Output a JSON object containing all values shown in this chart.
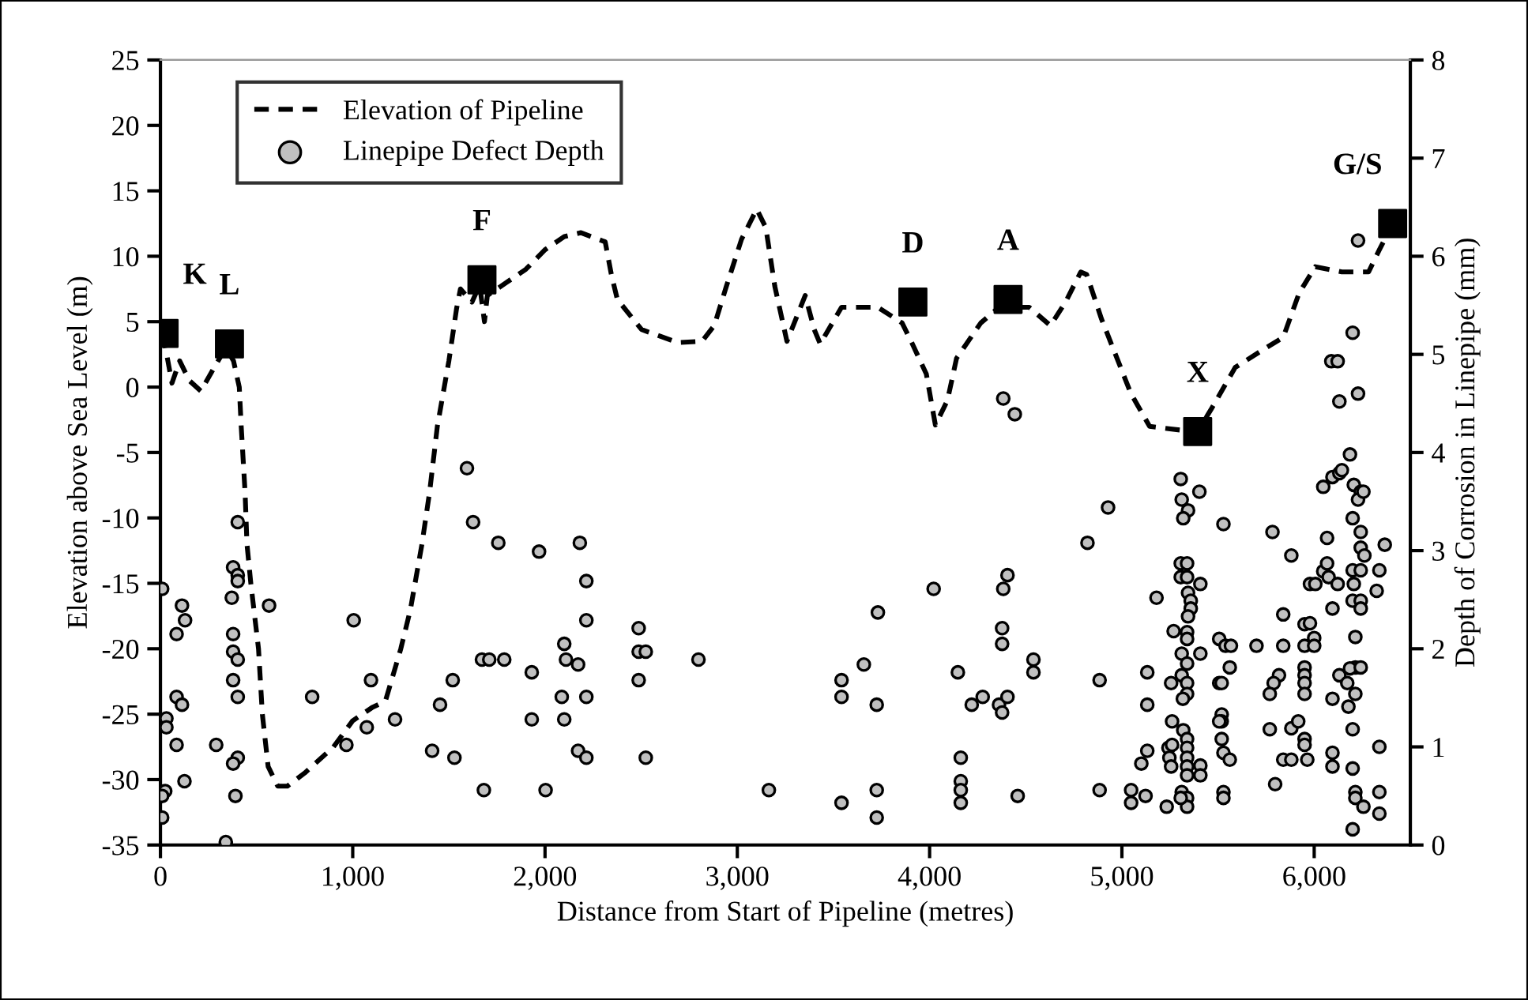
{
  "chart_data": {
    "type": "line",
    "xlabel": "Distance from Start of Pipeline (metres)",
    "ylabel": "Elevation above Sea Level (m)",
    "y2label": "Depth of Corrosion in Linepipe (mm)",
    "xlim": [
      0,
      6500
    ],
    "xticks": [
      0,
      {
        "value": 1000,
        "label": "1,000"
      },
      {
        "value": 2000,
        "label": "2,000"
      },
      {
        "value": 3000,
        "label": "3,000"
      },
      {
        "value": 4000,
        "label": "4,000"
      },
      {
        "value": 5000,
        "label": "5,000"
      },
      {
        "value": 6000,
        "label": "6,000"
      }
    ],
    "ylim": [
      -35,
      25
    ],
    "yticks": [
      -35,
      -30,
      -25,
      -20,
      -15,
      -10,
      -5,
      0,
      5,
      10,
      15,
      20,
      25
    ],
    "y2lim": [
      0,
      8
    ],
    "y2ticks": [
      0,
      1,
      2,
      3,
      4,
      5,
      6,
      7,
      8
    ],
    "grid": false,
    "legend": "top left",
    "series": [
      {
        "name": "Elevation of Pipeline",
        "axis": "y",
        "color": "#000000",
        "line_style": "dashed",
        "marker": "none",
        "x": [
          0,
          20,
          60,
          100,
          150,
          210,
          280,
          340,
          380,
          410,
          420,
          440,
          450,
          470,
          510,
          530,
          560,
          610,
          660,
          750,
          900,
          1000,
          1100,
          1170,
          1250,
          1300,
          1360,
          1400,
          1440,
          1500,
          1540,
          1560,
          1620,
          1660,
          1685,
          1700,
          1800,
          1900,
          2000,
          2100,
          2187,
          2313,
          2345,
          2376,
          2502,
          2691,
          2817,
          2880,
          2943,
          3022,
          3101,
          3148,
          3195,
          3258,
          3353,
          3400,
          3431,
          3542,
          3731,
          3857,
          3904,
          3983,
          4030,
          4093,
          4140,
          4266,
          4361,
          4518,
          4628,
          4707,
          4786,
          4817,
          4894,
          5047,
          5144,
          5311,
          5394,
          5464,
          5589,
          5728,
          5839,
          5922,
          6006,
          6144,
          6283,
          6339,
          6408
        ],
        "values": [
          4,
          3.5,
          0.3,
          2,
          0.5,
          -0.3,
          1.5,
          3,
          2,
          0,
          -3,
          -8,
          -12,
          -15,
          -20,
          -25,
          -29,
          -30.5,
          -30.5,
          -29.5,
          -27.5,
          -25.5,
          -24.5,
          -24,
          -20,
          -17,
          -12,
          -8,
          -3,
          2,
          6,
          7.5,
          6.5,
          7.8,
          5,
          7,
          8,
          9,
          10.5,
          11.5,
          11.8,
          11.1,
          8.6,
          6.7,
          4.4,
          3.4,
          3.5,
          4.7,
          7.7,
          11.3,
          13.6,
          12.2,
          7.7,
          3.5,
          7.0,
          4.4,
          3.3,
          6.1,
          6.1,
          4.9,
          3.5,
          1.0,
          -2.9,
          -1.0,
          2.2,
          4.9,
          6.1,
          6.1,
          4.7,
          6.5,
          8.8,
          8.6,
          5.2,
          -0.5,
          -3.0,
          -3.3,
          -3.4,
          -1.7,
          1.5,
          2.8,
          3.8,
          7.2,
          9.2,
          8.8,
          8.8,
          10.5,
          12.5
        ]
      },
      {
        "type": "scatter",
        "axis": "y",
        "color": "#000000",
        "marker": "square",
        "x": [
          19,
          359,
          1672,
          3913,
          4408,
          5394,
          6408
        ],
        "values": [
          4.1,
          3.3,
          8.2,
          6.5,
          6.7,
          -3.4,
          12.5
        ]
      },
      {
        "name": "Linepipe Defect Depth",
        "type": "scatter",
        "axis": "y2",
        "color": "#c0c0c0",
        "marker": "circle",
        "x": [
          9,
          112,
          128,
          84,
          84,
          112,
          31,
          31,
          84,
          125,
          25,
          9,
          9,
          290,
          340,
          402,
          378,
          402,
          402,
          371,
          378,
          378,
          402,
          378,
          402,
          402,
          378,
          390,
          565,
          789,
          1005,
          967,
          1073,
          1095,
          1220,
          1413,
          1454,
          1520,
          1529,
          1594,
          1626,
          1682,
          1672,
          1710,
          1788,
          1757,
          1931,
          1931,
          1969,
          2003,
          2100,
          2109,
          2087,
          2100,
          2172,
          2172,
          2181,
          2215,
          2215,
          2215,
          2215,
          2487,
          2487,
          2524,
          2487,
          2524,
          2798,
          3164,
          3542,
          3542,
          3542,
          3658,
          3731,
          3725,
          3725,
          3725,
          4021,
          4147,
          4162,
          4162,
          4162,
          4162,
          4219,
          4276,
          4361,
          4377,
          4405,
          4377,
          4377,
          4383,
          4405,
          4383,
          4443,
          4458,
          4540,
          4540,
          4821,
          4928,
          4884,
          4884,
          5048,
          5048,
          5123,
          5101,
          5132,
          5132,
          5132,
          5180,
          5233,
          5306,
          5311,
          5344,
          5319,
          5403,
          5306,
          5339,
          5306,
          5339,
          5408,
          5344,
          5358,
          5358,
          5344,
          5269,
          5339,
          5339,
          5311,
          5408,
          5339,
          5311,
          5339,
          5256,
          5339,
          5317,
          5261,
          5319,
          5339,
          5242,
          5261,
          5339,
          5247,
          5339,
          5256,
          5339,
          5408,
          5339,
          5408,
          5311,
          5339,
          5339,
          5306,
          5528,
          5506,
          5539,
          5567,
          5506,
          5519,
          5561,
          5519,
          5519,
          5506,
          5519,
          5528,
          5561,
          5528,
          5528,
          5700,
          5783,
          5839,
          5839,
          5817,
          5789,
          5769,
          5769,
          5797,
          5839,
          5881,
          5881,
          5917,
          5881,
          5950,
          5978,
          5950,
          6000,
          6000,
          5950,
          5950,
          5950,
          5950,
          5950,
          5950,
          5964,
          5978,
          6006,
          6047,
          6067,
          6047,
          6067,
          6075,
          6095,
          6095,
          6095,
          6095,
          6089,
          6122,
          6131,
          6095,
          6131,
          6186,
          6144,
          6122,
          6131,
          6200,
          6228,
          6228,
          6206,
          6242,
          6228,
          6256,
          6200,
          6242,
          6242,
          6261,
          6200,
          6242,
          6206,
          6200,
          6242,
          6242,
          6214,
          6214,
          6186,
          6242,
          6172,
          6214,
          6178,
          6200,
          6200,
          6214,
          6214,
          6256,
          6200,
          6367,
          6339,
          6325,
          6339,
          6339,
          6339
        ],
        "values": [
          2.61,
          2.44,
          2.29,
          2.15,
          1.51,
          1.43,
          1.29,
          1.2,
          1.02,
          0.65,
          0.55,
          0.5,
          0.28,
          1.02,
          0.03,
          3.29,
          2.83,
          2.75,
          2.69,
          2.52,
          2.15,
          1.97,
          1.89,
          1.68,
          1.51,
          0.89,
          0.83,
          0.5,
          2.44,
          1.51,
          2.29,
          1.02,
          1.2,
          1.68,
          1.28,
          0.96,
          1.43,
          1.68,
          0.89,
          3.84,
          3.29,
          0.56,
          1.89,
          1.89,
          1.89,
          3.08,
          1.76,
          1.28,
          2.99,
          0.56,
          2.05,
          1.89,
          1.51,
          1.28,
          0.96,
          1.84,
          3.08,
          2.69,
          2.29,
          1.51,
          0.89,
          2.21,
          1.97,
          1.97,
          1.68,
          0.89,
          1.89,
          0.56,
          1.68,
          1.51,
          0.43,
          1.84,
          2.37,
          1.43,
          0.56,
          0.28,
          2.61,
          1.76,
          0.89,
          0.65,
          0.56,
          0.43,
          1.43,
          1.51,
          1.43,
          1.35,
          1.51,
          2.21,
          2.05,
          2.61,
          2.75,
          4.55,
          4.39,
          0.5,
          1.89,
          1.76,
          3.08,
          3.44,
          1.68,
          0.56,
          0.56,
          0.43,
          0.5,
          0.83,
          0.96,
          1.43,
          1.76,
          2.52,
          0.39,
          3.73,
          3.52,
          3.41,
          3.33,
          3.6,
          2.87,
          2.87,
          2.73,
          2.73,
          2.66,
          2.57,
          2.49,
          2.41,
          2.33,
          2.18,
          2.17,
          2.1,
          1.95,
          1.95,
          1.85,
          1.73,
          1.65,
          1.65,
          1.54,
          1.49,
          1.26,
          1.17,
          1.08,
          0.99,
          1.02,
          0.99,
          0.89,
          0.89,
          0.8,
          0.8,
          0.81,
          0.71,
          0.71,
          0.54,
          0.48,
          0.39,
          0.48,
          3.27,
          2.1,
          2.03,
          2.03,
          1.65,
          1.65,
          1.81,
          1.33,
          1.26,
          1.26,
          1.08,
          0.94,
          0.87,
          0.54,
          0.48,
          2.03,
          3.19,
          2.35,
          2.03,
          1.73,
          1.65,
          1.54,
          1.18,
          0.62,
          0.87,
          0.87,
          1.19,
          1.26,
          2.95,
          2.25,
          2.26,
          2.03,
          2.11,
          2.03,
          1.81,
          1.73,
          1.65,
          1.54,
          1.08,
          1.02,
          0.87,
          2.66,
          2.66,
          3.65,
          3.13,
          2.79,
          2.87,
          2.73,
          2.41,
          1.49,
          0.94,
          0.8,
          4.93,
          4.93,
          4.52,
          3.75,
          3.79,
          3.98,
          3.82,
          2.66,
          1.73,
          5.22,
          4.6,
          6.16,
          3.67,
          3.6,
          3.52,
          3.6,
          3.33,
          3.19,
          3.03,
          2.95,
          2.8,
          2.8,
          2.66,
          2.49,
          2.49,
          2.41,
          2.12,
          1.81,
          1.8,
          1.81,
          1.65,
          1.54,
          1.41,
          1.18,
          0.78,
          0.54,
          0.48,
          0.39,
          0.16,
          3.06,
          2.8,
          2.59,
          1.0,
          0.54,
          0.32
        ]
      }
    ],
    "annotations": [
      {
        "text": "K",
        "x": 19,
        "y": 4.1
      },
      {
        "text": "L",
        "x": 359,
        "y": 3.3
      },
      {
        "text": "F",
        "x": 1672,
        "y": 8.2
      },
      {
        "text": "D",
        "x": 3913,
        "y": 6.5
      },
      {
        "text": "A",
        "x": 4408,
        "y": 6.7
      },
      {
        "text": "X",
        "x": 5394,
        "y": -3.4
      },
      {
        "text": "G/S",
        "x": 6408,
        "y": 12.5
      }
    ]
  }
}
